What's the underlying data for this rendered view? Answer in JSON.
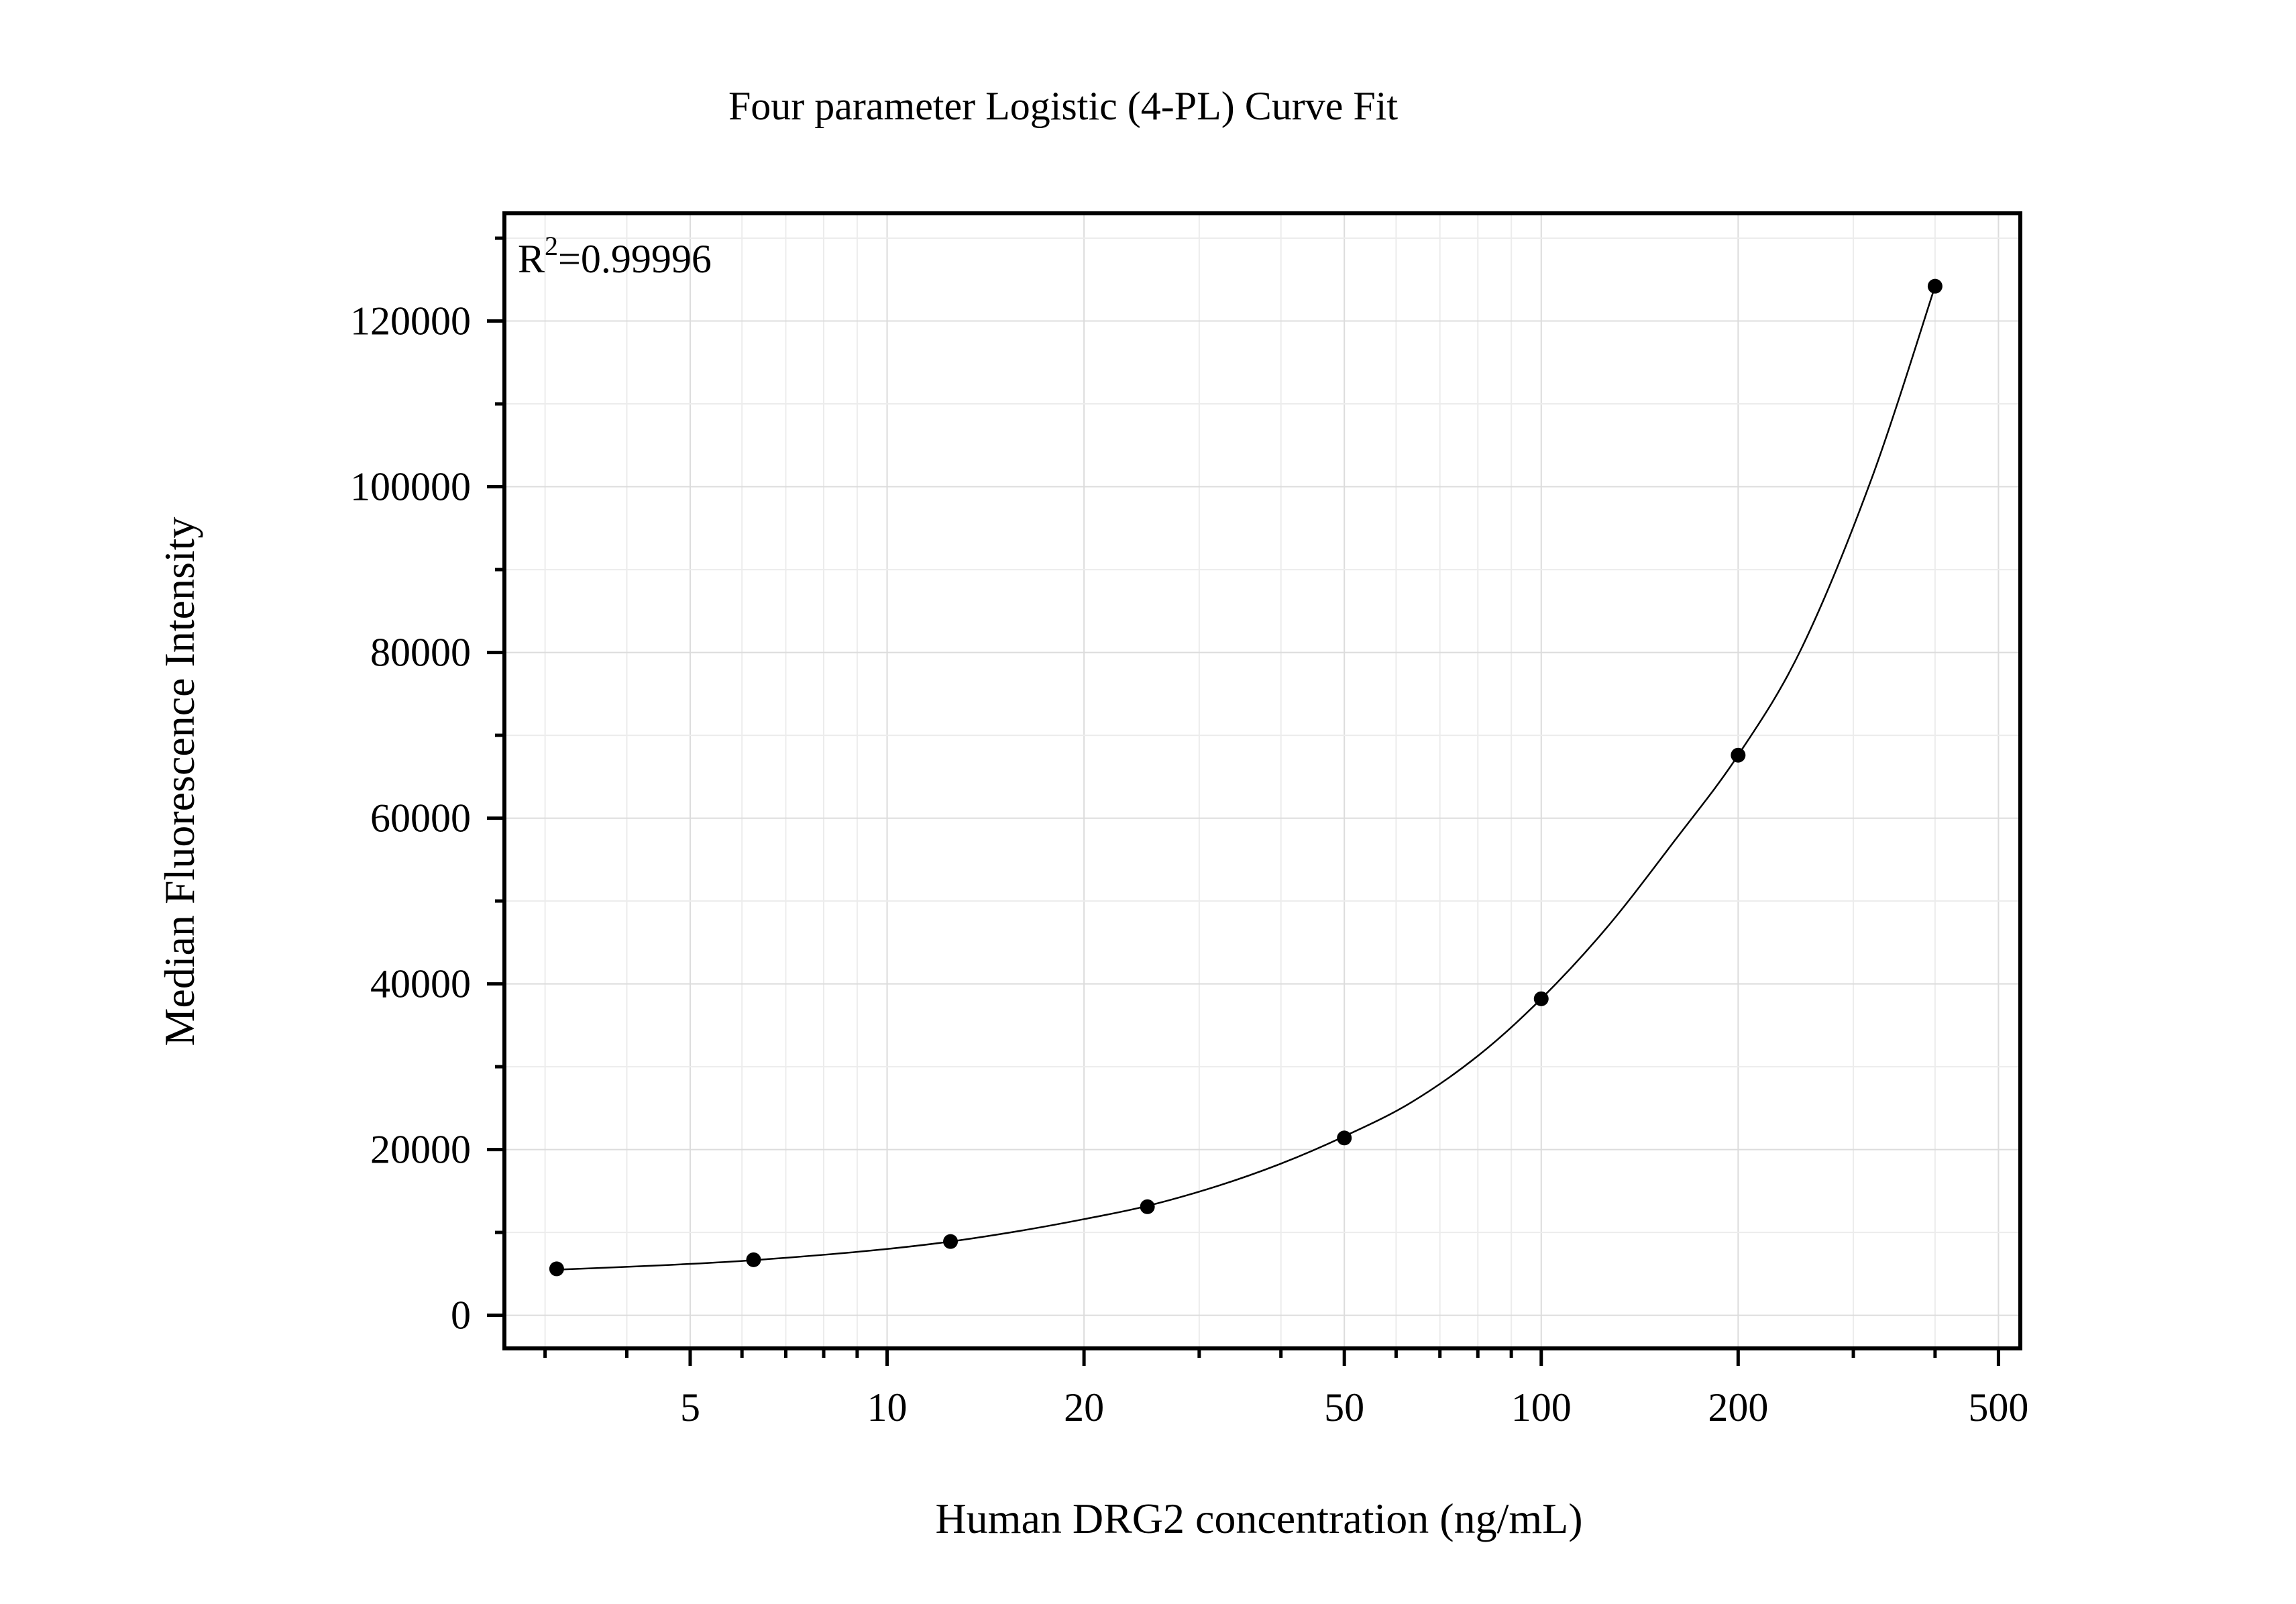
{
  "chart_data": {
    "type": "scatter",
    "title": "Four parameter Logistic (4-PL) Curve Fit",
    "xlabel": "Human DRG2 concentration (ng/mL)",
    "ylabel": "Median Fluorescence Intensity",
    "x_scale": "log",
    "xlim": [
      2.6,
      540
    ],
    "ylim": [
      -4000,
      133000
    ],
    "x_ticks": [
      5,
      10,
      20,
      50,
      100,
      200,
      500
    ],
    "x_tick_labels": [
      "5",
      "10",
      "20",
      "50",
      "100",
      "200",
      "500"
    ],
    "y_ticks": [
      0,
      20000,
      40000,
      60000,
      80000,
      100000,
      120000
    ],
    "y_tick_labels": [
      "0",
      "20000",
      "40000",
      "60000",
      "80000",
      "100000",
      "120000"
    ],
    "grid": true,
    "annotation": {
      "base": "R",
      "sup": "2",
      "rest": "=0.99996"
    },
    "series": [
      {
        "style": "points",
        "x": [
          3.125,
          6.25,
          12.5,
          25,
          50,
          100,
          200,
          400
        ],
        "y": [
          5600,
          6700,
          8900,
          13100,
          21400,
          38200,
          67600,
          124200
        ]
      },
      {
        "style": "fit-line",
        "x": [
          3.125,
          4,
          5,
          6.25,
          8,
          10,
          12.5,
          16,
          20,
          25,
          32,
          40,
          50,
          63,
          80,
          100,
          126,
          160,
          200,
          250,
          320,
          400
        ],
        "y": [
          5500,
          5850,
          6200,
          6650,
          7300,
          8000,
          8900,
          10200,
          11600,
          13200,
          15600,
          18300,
          21600,
          25600,
          31300,
          38200,
          46800,
          57300,
          67600,
          80500,
          101000,
          124200
        ]
      }
    ]
  }
}
